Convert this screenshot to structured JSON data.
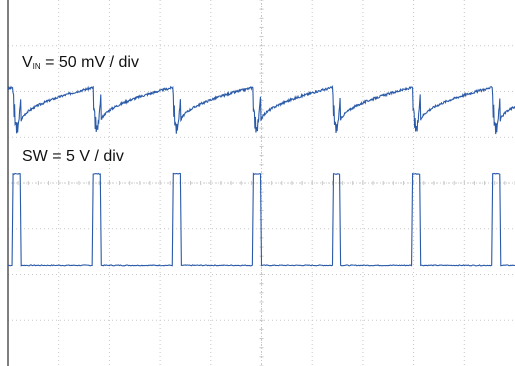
{
  "chart_data": {
    "type": "line",
    "title": "",
    "xlabel": "",
    "ylabel": "",
    "grid": true,
    "divisions": {
      "x": 10,
      "y": 8
    },
    "x_range_div": [
      0,
      10
    ],
    "y_range_div": [
      -4,
      4
    ],
    "period_div": 1.575,
    "duty_cycle": 0.1,
    "series": [
      {
        "label_main": "V",
        "label_sub": "IN",
        "label_rest": " = 50 mV / div",
        "color": "#2a5aa8",
        "offset_div": 1.85,
        "ripple_pp_div": 0.95
      },
      {
        "label": "SW = 5 V / div",
        "color": "#2a5aa8",
        "offset_div": -1.75,
        "high_div": 1.95,
        "low_div": -0.05
      }
    ]
  },
  "colors": {
    "grid": "#c8c8c8",
    "border": "#555555",
    "trace": "#2a5aa8",
    "trace_fill": "#8aaee0"
  }
}
